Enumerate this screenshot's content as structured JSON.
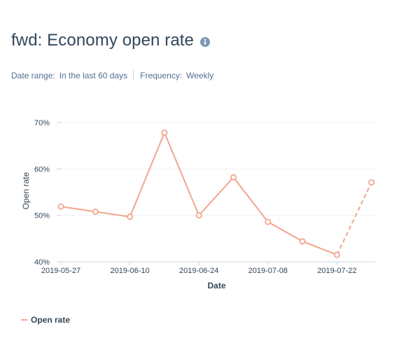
{
  "header": {
    "title": "fwd: Economy open rate",
    "info_icon": "info-circle-icon"
  },
  "filters": {
    "date_range_label": "Date range:",
    "date_range_value": "In the last 60 days",
    "frequency_label": "Frequency:",
    "frequency_value": "Weekly"
  },
  "legend": {
    "label": "Open rate"
  },
  "colors": {
    "series": "#f2a58e",
    "text": "#33475b",
    "muted": "#516f90",
    "grid": "#dfe3eb"
  },
  "chart_data": {
    "type": "line",
    "x": [
      "2019-05-27",
      "2019-06-03",
      "2019-06-10",
      "2019-06-17",
      "2019-06-24",
      "2019-07-01",
      "2019-07-08",
      "2019-07-15",
      "2019-07-22",
      "2019-07-29"
    ],
    "x_tick_labels": [
      "2019-05-27",
      "2019-06-10",
      "2019-06-24",
      "2019-07-08",
      "2019-07-22"
    ],
    "series": [
      {
        "name": "Open rate",
        "values": [
          51.9,
          50.8,
          49.7,
          67.8,
          50.0,
          58.2,
          48.6,
          44.4,
          41.5,
          57.1
        ],
        "dashed_last_segment": true
      }
    ],
    "y_ticks": [
      40,
      50,
      60,
      70
    ],
    "y_tick_labels": [
      "40%",
      "50%",
      "60%",
      "70%"
    ],
    "ylim": [
      40,
      70
    ],
    "xlabel": "Date",
    "ylabel": "Open rate",
    "grid": true
  }
}
